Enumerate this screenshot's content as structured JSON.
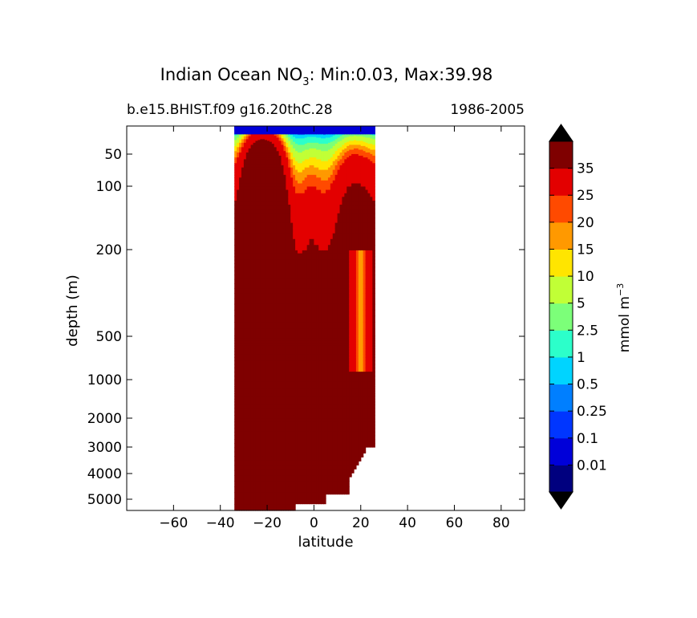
{
  "chart_data": {
    "type": "heatmap",
    "title": "Indian Ocean NO",
    "title_subscript": "3",
    "title_stats": ": Min:0.03, Max:39.98",
    "subtitle_left": "b.e15.BHIST.f09 g16.20thC.28",
    "subtitle_right": "1986-2005",
    "xlabel": "latitude",
    "ylabel": "depth (m)",
    "xlim": [
      -80,
      90
    ],
    "xticks": [
      -60,
      -40,
      -20,
      0,
      20,
      40,
      60,
      80
    ],
    "xtick_labels": [
      "−60",
      "−40",
      "−20",
      "0",
      "20",
      "40",
      "60",
      "80"
    ],
    "y_scale": "nonlinear (depth-stretched)",
    "yticks": [
      50,
      100,
      200,
      500,
      1000,
      2000,
      3000,
      4000,
      5000
    ],
    "ytick_labels": [
      "50",
      "100",
      "200",
      "500",
      "1000",
      "2000",
      "3000",
      "4000",
      "5000"
    ],
    "data_extent": {
      "lat_min": -34,
      "lat_max": 26,
      "depth_min": 5,
      "depth_max": 5500
    },
    "colorbar": {
      "label": "mmol m",
      "label_superscript": "−3",
      "levels": [
        0.01,
        0.1,
        0.25,
        0.5,
        1,
        2.5,
        5,
        10,
        15,
        20,
        25,
        35
      ],
      "level_labels": [
        "0.01",
        "0.1",
        "0.25",
        "0.5",
        "1",
        "2.5",
        "5",
        "10",
        "15",
        "20",
        "25",
        "35"
      ],
      "colors": [
        "#00007f",
        "#0000d9",
        "#0036ff",
        "#007fff",
        "#00d4ff",
        "#2cffca",
        "#7cff79",
        "#c1ff36",
        "#ffe500",
        "#ff9900",
        "#ff4a00",
        "#e30000",
        "#7f0000"
      ],
      "extend": "both",
      "extend_color": "#000000"
    },
    "colors": {
      "outline": "#000000",
      "background": "#ffffff"
    }
  }
}
